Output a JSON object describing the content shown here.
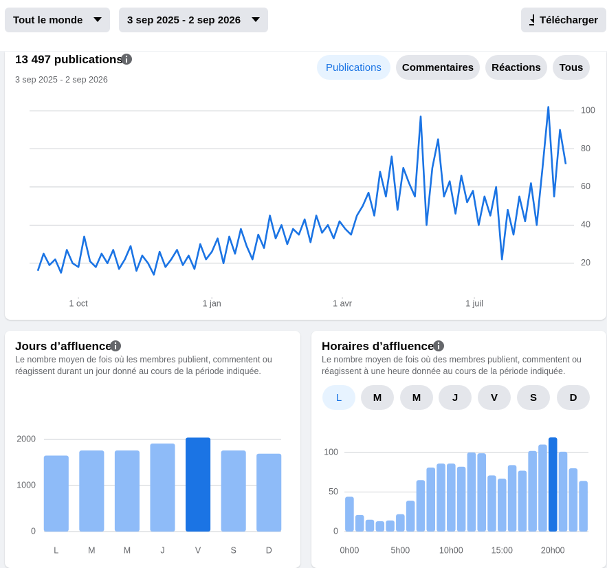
{
  "toolbar": {
    "audience": "Tout le monde",
    "date_range": "3 sep 2025 - 2 sep 2026",
    "download": "Télécharger"
  },
  "tabs": [
    "Publications",
    "Commentaires",
    "Réactions",
    "Tous"
  ],
  "day_selector": [
    "L",
    "M",
    "M",
    "J",
    "V",
    "S",
    "D"
  ],
  "chart_data": [
    {
      "type": "line",
      "title": "13 497 publications",
      "subtitle": "3 sep 2025 - 2 sep 2026",
      "color": "#1b74e4",
      "x": [
        0,
        4,
        8,
        12,
        16,
        20,
        24,
        28,
        32,
        36,
        40,
        44,
        48,
        52,
        56,
        60,
        64,
        68,
        72,
        76,
        80,
        84,
        88,
        92,
        96,
        100,
        104,
        108,
        112,
        116,
        120,
        124,
        128,
        132,
        136,
        140,
        144,
        148,
        152,
        156,
        160,
        164,
        168,
        172,
        176,
        180,
        184,
        188,
        192,
        196,
        200,
        204,
        208,
        212,
        216,
        220,
        224,
        228,
        232,
        236,
        240,
        244,
        248,
        252,
        256,
        260,
        264,
        268,
        272,
        276,
        280,
        284,
        288,
        292,
        296,
        300,
        304,
        308,
        312,
        316,
        320,
        324,
        328,
        332,
        336,
        340,
        344,
        348,
        352,
        356,
        360,
        364
      ],
      "values": [
        16,
        25,
        19,
        22,
        15,
        27,
        20,
        18,
        34,
        21,
        18,
        25,
        20,
        27,
        17,
        22,
        29,
        16,
        24,
        20,
        14,
        26,
        18,
        22,
        27,
        19,
        24,
        17,
        30,
        22,
        26,
        33,
        20,
        34,
        25,
        38,
        29,
        22,
        35,
        28,
        45,
        33,
        40,
        30,
        38,
        35,
        43,
        31,
        45,
        36,
        40,
        33,
        42,
        38,
        35,
        45,
        50,
        57,
        45,
        68,
        55,
        76,
        48,
        70,
        62,
        55,
        97,
        40,
        70,
        85,
        55,
        63,
        46,
        66,
        52,
        58,
        40,
        55,
        45,
        60,
        22,
        48,
        35,
        55,
        42,
        62,
        40,
        70,
        102,
        55,
        90,
        72
      ],
      "xlim": [
        0,
        364
      ],
      "xticks": [
        {
          "value": 28,
          "label": "1 oct"
        },
        {
          "value": 120,
          "label": "1 jan"
        },
        {
          "value": 210,
          "label": "1 avr"
        },
        {
          "value": 301,
          "label": "1 juil"
        }
      ],
      "ylim": [
        8,
        104
      ],
      "yticks": [
        20,
        40,
        60,
        80,
        100
      ],
      "grid": true
    },
    {
      "type": "bar",
      "title": "Jours d’affluence",
      "subtitle": "Le nombre moyen de fois où les membres publient, commentent ou réagissent durant un jour donné au cours de la période indiquée.",
      "categories": [
        "L",
        "M",
        "M",
        "J",
        "V",
        "S",
        "D"
      ],
      "values": [
        1650,
        1760,
        1760,
        1910,
        2040,
        1760,
        1690
      ],
      "color": "#8ebbf8",
      "highlight_color": "#1b74e4",
      "highlight": 4,
      "ylim": [
        0,
        2200
      ],
      "yticks": [
        0,
        1000,
        2000
      ],
      "grid": true
    },
    {
      "type": "bar",
      "title": "Horaires d’affluence",
      "subtitle": "Le nombre moyen de fois où des membres publient, commentent ou réagissent à une heure donnée au cours de la période indiquée.",
      "categories": [
        "0h00",
        null,
        null,
        null,
        null,
        "5h00",
        null,
        null,
        null,
        null,
        "10h00",
        null,
        null,
        null,
        null,
        "15:00",
        null,
        null,
        null,
        null,
        "20h00",
        null,
        null,
        null
      ],
      "values": [
        44,
        21,
        15,
        13,
        14,
        22,
        39,
        65,
        81,
        86,
        86,
        82,
        100,
        99,
        71,
        67,
        84,
        77,
        102,
        110,
        119,
        101,
        80,
        64
      ],
      "color": "#8ebbf8",
      "highlight_color": "#1b74e4",
      "highlight": 20,
      "ylim": [
        0,
        125
      ],
      "yticks": [
        0,
        50,
        100
      ],
      "grid": true
    }
  ]
}
